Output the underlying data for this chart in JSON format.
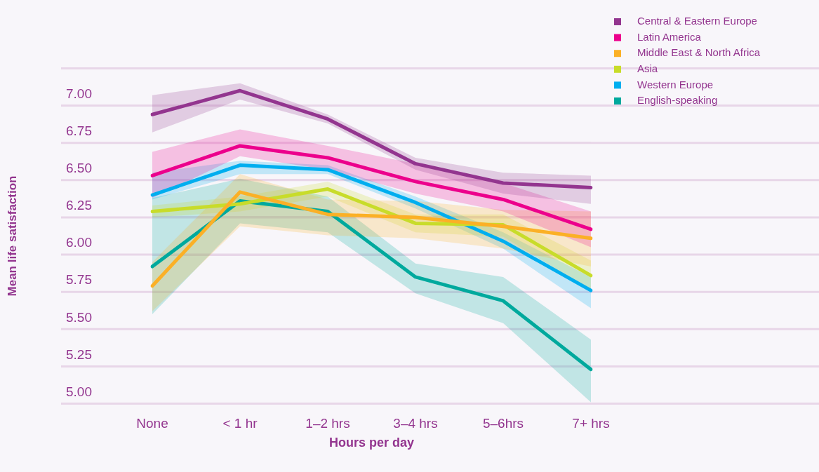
{
  "chart_data": {
    "type": "line",
    "xlabel": "Hours per day",
    "ylabel": "Mean life satisfaction",
    "categories": [
      "None",
      "< 1 hr",
      "1–2 hrs",
      "3–4 hrs",
      "5–6hrs",
      "7+ hrs"
    ],
    "ylim": [
      5,
      7.25
    ],
    "yticks": [
      {
        "value": 5,
        "label": "5.00"
      },
      {
        "value": 5.25,
        "label": "5.25"
      },
      {
        "value": 5.5,
        "label": "5.50"
      },
      {
        "value": 5.75,
        "label": "5.75"
      },
      {
        "value": 6,
        "label": "6.00"
      },
      {
        "value": 6.25,
        "label": "6.25"
      },
      {
        "value": 6.5,
        "label": "6.50"
      },
      {
        "value": 6.75,
        "label": "6.75"
      },
      {
        "value": 7,
        "label": "7.00"
      },
      {
        "value": 7.25,
        "label": null
      }
    ],
    "grid": "y",
    "legend": "top right",
    "marker": "none",
    "line_style": "solid",
    "series": [
      {
        "name": "Central & Eastern Europe",
        "color": "#93358f",
        "values": [
          6.94,
          7.1,
          6.91,
          6.61,
          6.48,
          6.45
        ],
        "lower": [
          6.82,
          7.04,
          6.88,
          6.57,
          6.41,
          6.34
        ],
        "upper": [
          7.07,
          7.15,
          6.94,
          6.65,
          6.55,
          6.53
        ]
      },
      {
        "name": "Latin America",
        "color": "#ec008c",
        "values": [
          6.53,
          6.73,
          6.65,
          6.49,
          6.37,
          6.17
        ],
        "lower": [
          6.38,
          6.66,
          6.57,
          6.41,
          6.29,
          6.05
        ],
        "upper": [
          6.69,
          6.84,
          6.73,
          6.61,
          6.48,
          6.29
        ]
      },
      {
        "name": "Middle East & North Africa",
        "color": "#fbb026",
        "values": [
          5.79,
          6.42,
          6.27,
          6.25,
          6.19,
          6.11
        ],
        "lower": [
          5.62,
          6.19,
          6.13,
          6.11,
          6.04,
          5.92
        ],
        "upper": [
          5.95,
          6.54,
          6.37,
          6.36,
          6.3,
          6.29
        ]
      },
      {
        "name": "Asia",
        "color": "#c8dc2a",
        "values": [
          6.29,
          6.34,
          6.44,
          6.21,
          6.2,
          5.86
        ],
        "lower": [
          6.25,
          6.29,
          6.39,
          6.15,
          6.12,
          5.76
        ],
        "upper": [
          6.33,
          6.39,
          6.49,
          6.27,
          6.27,
          5.96
        ]
      },
      {
        "name": "Western Europe",
        "color": "#00aeef",
        "values": [
          6.4,
          6.6,
          6.57,
          6.35,
          6.09,
          5.76
        ],
        "lower": [
          6.37,
          6.54,
          6.54,
          6.31,
          6.04,
          5.64
        ],
        "upper": [
          6.55,
          6.63,
          6.6,
          6.39,
          6.15,
          5.85
        ]
      },
      {
        "name": "English-speaking",
        "color": "#00a99d",
        "values": [
          5.92,
          6.36,
          6.29,
          5.85,
          5.69,
          5.23
        ],
        "lower": [
          5.6,
          6.21,
          6.15,
          5.74,
          5.54,
          5.01
        ],
        "upper": [
          6.38,
          6.51,
          6.39,
          5.94,
          5.85,
          5.43
        ]
      }
    ]
  }
}
